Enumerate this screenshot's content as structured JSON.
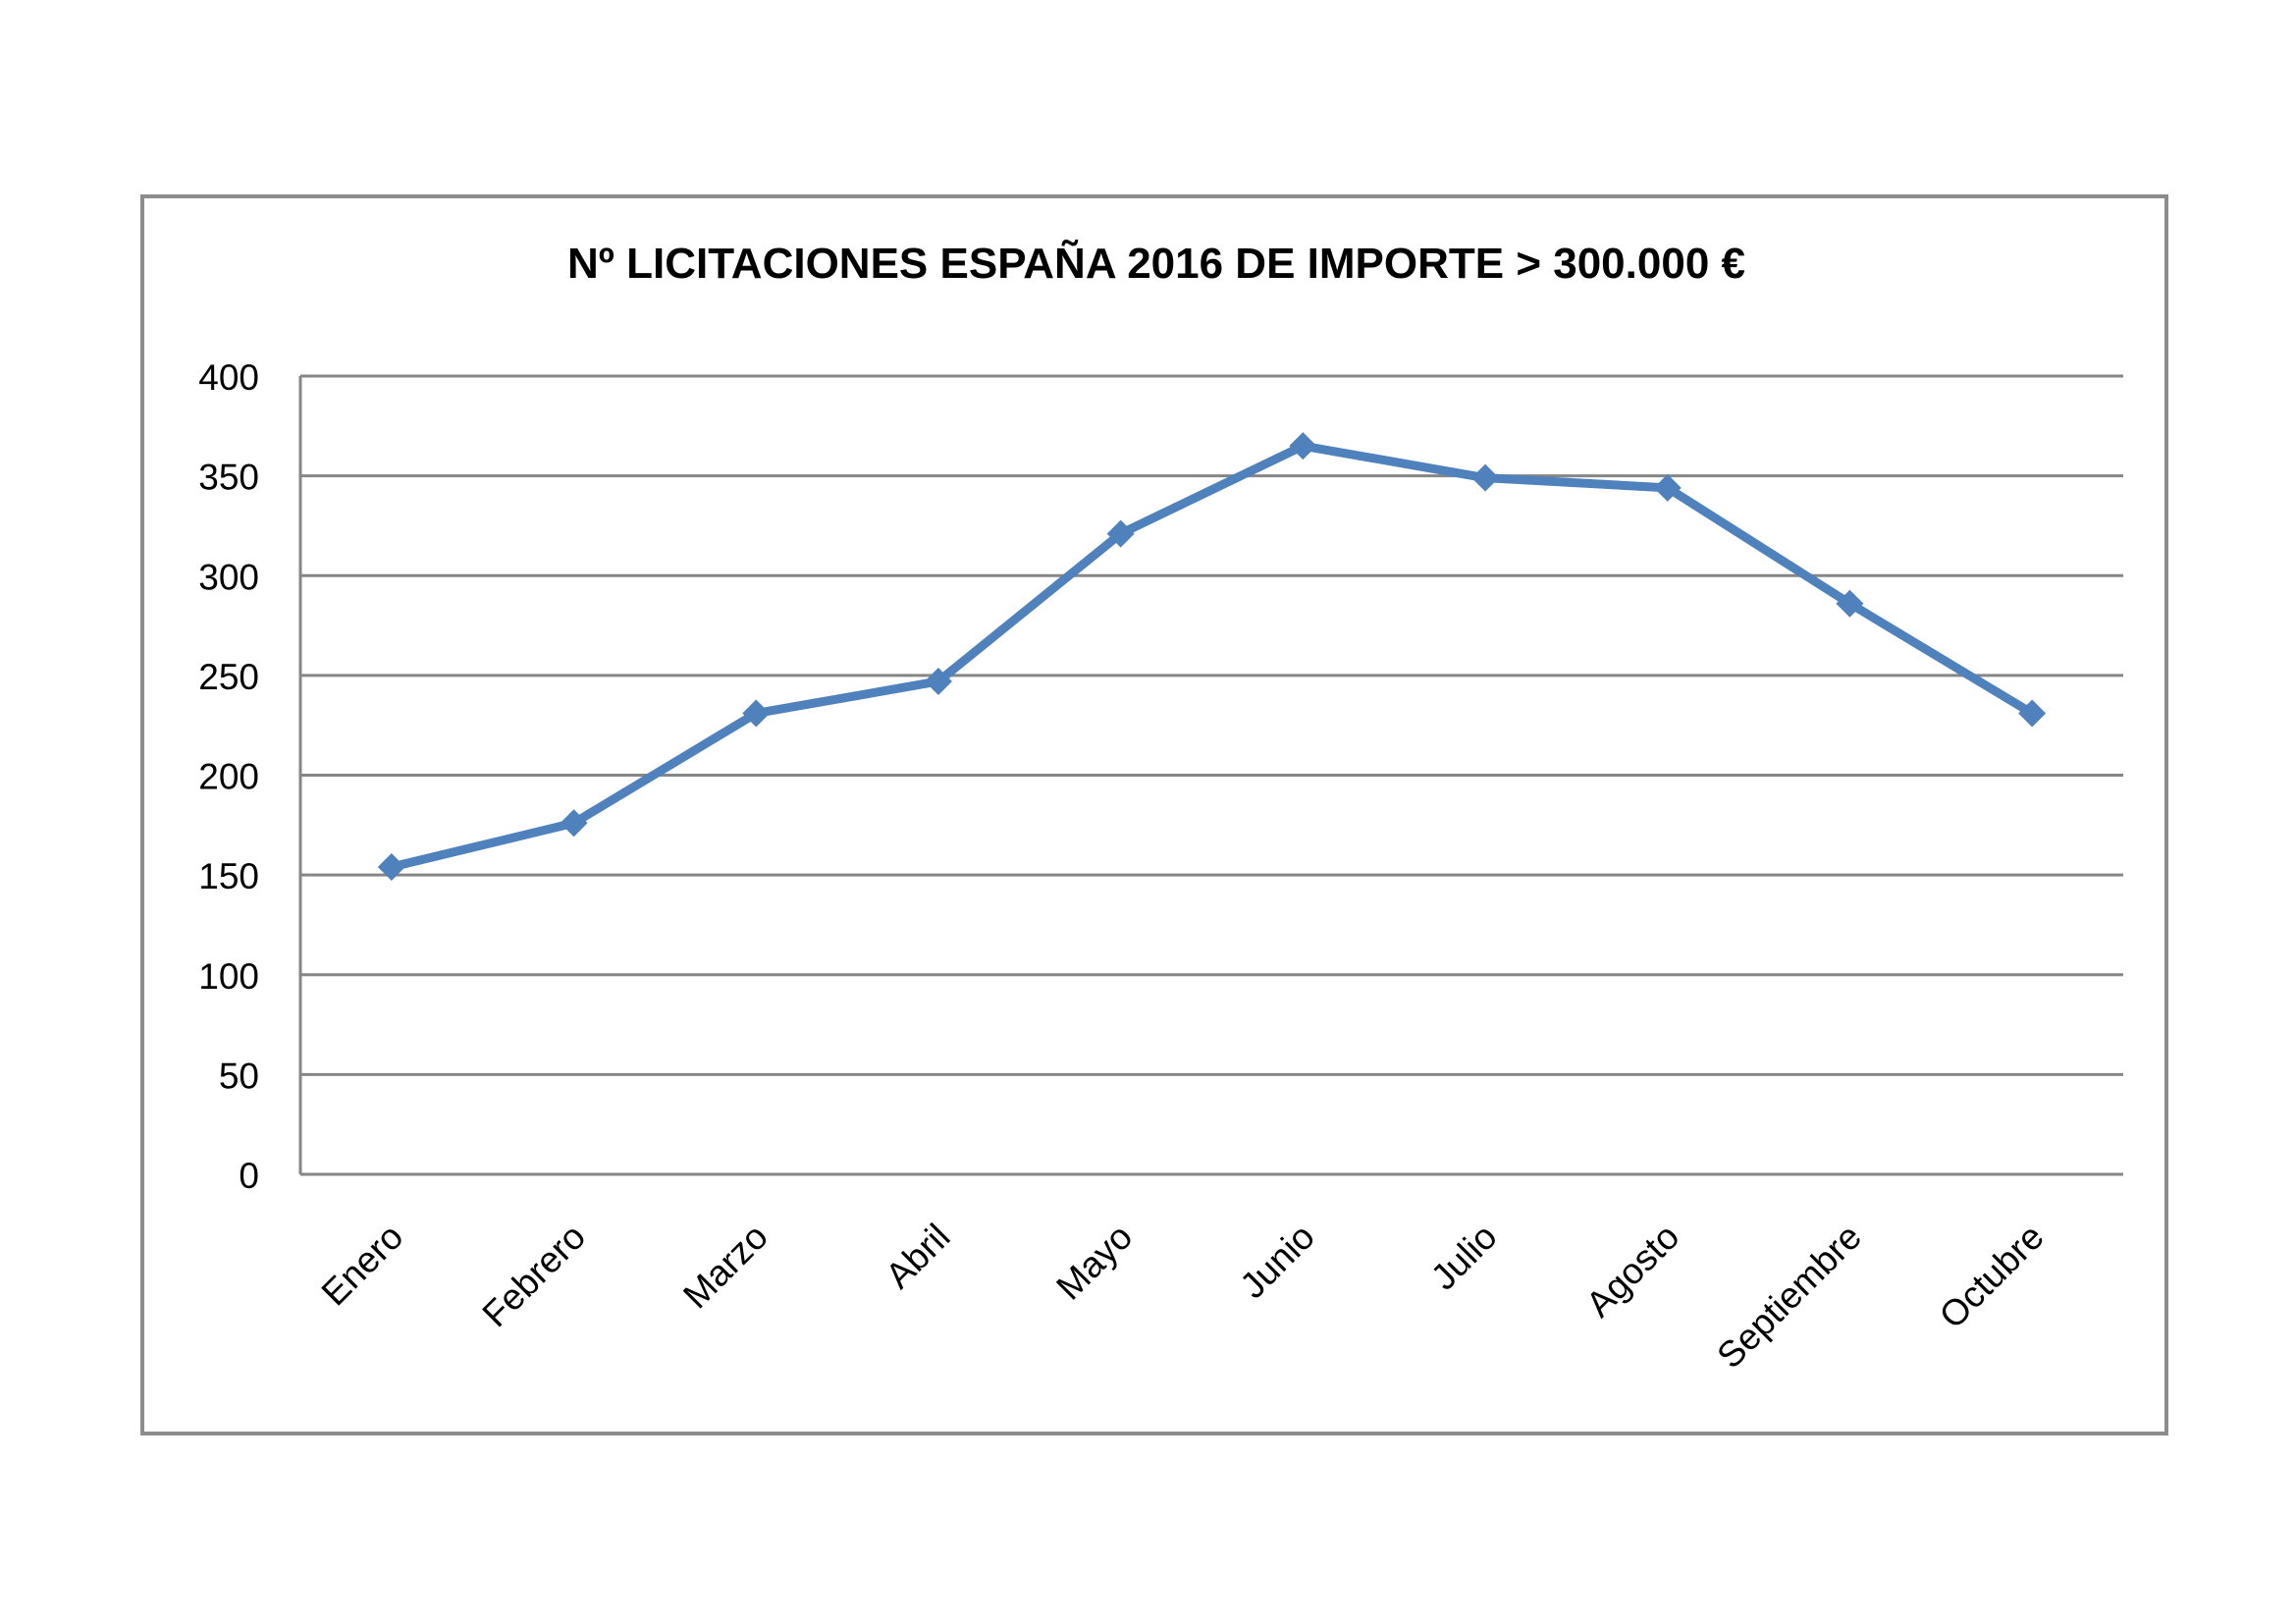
{
  "chart_data": {
    "type": "line",
    "title": "Nº LICITACIONES ESPAÑA 2016 DE IMPORTE > 300.000 €",
    "xlabel": "",
    "ylabel": "",
    "categories": [
      "Enero",
      "Febrero",
      "Marzo",
      "Abril",
      "Mayo",
      "Junio",
      "Julio",
      "Agosto",
      "Septiembre",
      "Octubre"
    ],
    "series": [
      {
        "values": [
          154,
          176,
          231,
          247,
          321,
          365,
          349,
          344,
          286,
          231
        ]
      }
    ],
    "ylim": [
      0,
      400
    ],
    "yticks": [
      0,
      50,
      100,
      150,
      200,
      250,
      300,
      350,
      400
    ],
    "grid": true,
    "legend": "none",
    "series_color": "#4f81bd",
    "grid_color": "#868686",
    "frame_color": "#8c8c8c"
  }
}
